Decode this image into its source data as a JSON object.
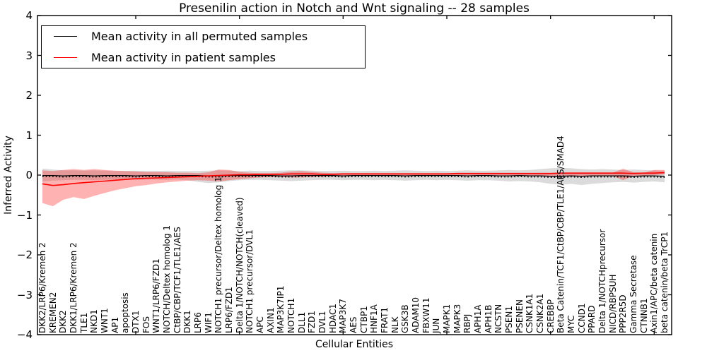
{
  "chart_data": {
    "type": "line",
    "title": "Presenilin action in Notch and Wnt signaling -- 28 samples",
    "xlabel": "Cellular Entities",
    "ylabel": "Inferred Activity",
    "ylim": [
      -4,
      4
    ],
    "y_ticks": [
      4,
      3,
      2,
      1,
      0,
      -1,
      -2,
      -3,
      -4
    ],
    "y_tick_labels": [
      "4",
      "3",
      "2",
      "1",
      "0",
      "−1",
      "−2",
      "−3",
      "−4"
    ],
    "grid": false,
    "legend_position": "upper left",
    "categories": [
      "DKK2/LRP6/Kremen 2",
      "KREMEN2",
      "DKK2",
      "DKK1/LRP6/Kremen 2",
      "TLE1",
      "NKD1",
      "WNT1",
      "AP1",
      "apoptosis",
      "DTX1",
      "FOS",
      "WNT1/LRP6/FZD1",
      "NOTCH/Deltex homolog 1",
      "CtBP/CBP/TCF1/TLE1/AES",
      "DKK1",
      "LRP6",
      "WIF1",
      "NOTCH1 precursor/Deltex homolog 1",
      "LRP6/FZD1",
      "Delta 1/NOTCH/NOTCH(cleaved)",
      "NOTCH1 precursor/DVL1",
      "APC",
      "AXIN1",
      "MAP3K7IP1",
      "NOTCH1",
      "DLL1",
      "FZD1",
      "DVL1",
      "HDAC1",
      "MAP3K7",
      "AES",
      "CTBP1",
      "HNF1A",
      "FRAT1",
      "NLK",
      "GSK3B",
      "ADAM10",
      "FBXW11",
      "JUN",
      "MAPK1",
      "MAPK3",
      "RBPJ",
      "APH1A",
      "APH1B",
      "NCSTN",
      "PSEN1",
      "PSENEN",
      "CSNK1A1",
      "CSNK2A1",
      "CREBBP",
      "Beta Catenin/TCF1/CtBP/CBP/TLE1/AES/SMAD4",
      "MYC",
      "CCND1",
      "PPARD",
      "Delta 1/NOTCHprecursor",
      "NICD/RBPSUH",
      "PPP2R5D",
      "Gamma Secretase",
      "CTNNB1",
      "Axin1/APC/beta catenin",
      "beta catenin/beta TrCP1"
    ],
    "series": [
      {
        "name": "Mean activity in all permuted samples",
        "color": "#000000",
        "band_color": "rgba(0,0,0,0.14)",
        "line_style": "solid-with-dots",
        "values": [
          -0.01,
          -0.01,
          -0.02,
          -0.01,
          -0.01,
          -0.02,
          -0.01,
          -0.01,
          -0.01,
          -0.02,
          -0.01,
          -0.01,
          -0.02,
          -0.01,
          -0.01,
          -0.01,
          -0.02,
          -0.02,
          -0.01,
          -0.01,
          -0.01,
          -0.01,
          -0.01,
          -0.02,
          -0.02,
          -0.01,
          -0.01,
          -0.01,
          -0.01,
          -0.02,
          -0.01,
          -0.01,
          -0.01,
          -0.01,
          -0.01,
          -0.02,
          -0.01,
          -0.01,
          -0.01,
          -0.01,
          -0.01,
          -0.02,
          -0.01,
          -0.01,
          -0.02,
          -0.02,
          -0.01,
          -0.02,
          -0.02,
          -0.03,
          -0.03,
          -0.02,
          -0.03,
          -0.02,
          -0.02,
          -0.02,
          -0.02,
          -0.03,
          -0.02,
          -0.02,
          -0.03
        ],
        "band_upper": [
          0.16,
          0.14,
          0.12,
          0.12,
          0.11,
          0.12,
          0.11,
          0.1,
          0.1,
          0.11,
          0.1,
          0.1,
          0.11,
          0.1,
          0.1,
          0.1,
          0.11,
          0.12,
          0.11,
          0.1,
          0.11,
          0.1,
          0.1,
          0.11,
          0.12,
          0.12,
          0.11,
          0.1,
          0.1,
          0.11,
          0.1,
          0.1,
          0.11,
          0.1,
          0.11,
          0.12,
          0.11,
          0.1,
          0.11,
          0.1,
          0.11,
          0.12,
          0.11,
          0.11,
          0.12,
          0.13,
          0.12,
          0.13,
          0.15,
          0.17,
          0.18,
          0.17,
          0.15,
          0.14,
          0.15,
          0.14,
          0.13,
          0.14,
          0.13,
          0.12,
          0.1
        ],
        "band_lower": [
          -0.16,
          -0.14,
          -0.13,
          -0.12,
          -0.12,
          -0.13,
          -0.12,
          -0.11,
          -0.11,
          -0.12,
          -0.11,
          -0.11,
          -0.12,
          -0.11,
          -0.13,
          -0.17,
          -0.2,
          -0.18,
          -0.15,
          -0.13,
          -0.12,
          -0.12,
          -0.13,
          -0.14,
          -0.15,
          -0.14,
          -0.13,
          -0.12,
          -0.12,
          -0.13,
          -0.12,
          -0.12,
          -0.13,
          -0.12,
          -0.13,
          -0.14,
          -0.13,
          -0.12,
          -0.13,
          -0.12,
          -0.13,
          -0.14,
          -0.13,
          -0.13,
          -0.14,
          -0.16,
          -0.15,
          -0.16,
          -0.18,
          -0.22,
          -0.24,
          -0.22,
          -0.25,
          -0.22,
          -0.2,
          -0.18,
          -0.17,
          -0.19,
          -0.17,
          -0.16,
          -0.18
        ]
      },
      {
        "name": "Mean activity in patient samples",
        "color": "#ff0000",
        "band_color": "rgba(255,0,0,0.30)",
        "line_style": "solid",
        "values": [
          -0.22,
          -0.26,
          -0.24,
          -0.21,
          -0.19,
          -0.17,
          -0.15,
          -0.13,
          -0.11,
          -0.09,
          -0.08,
          -0.07,
          -0.06,
          -0.05,
          -0.04,
          -0.03,
          -0.02,
          -0.01,
          0.0,
          0.01,
          0.01,
          0.02,
          0.02,
          0.02,
          0.03,
          0.03,
          0.03,
          0.02,
          0.02,
          0.03,
          0.03,
          0.03,
          0.03,
          0.03,
          0.03,
          0.03,
          0.03,
          0.03,
          0.03,
          0.03,
          0.04,
          0.04,
          0.04,
          0.04,
          0.04,
          0.04,
          0.04,
          0.04,
          0.04,
          0.04,
          0.05,
          0.05,
          0.05,
          0.05,
          0.05,
          0.05,
          0.05,
          0.04,
          0.05,
          0.05,
          0.06
        ],
        "band_upper": [
          0.12,
          0.1,
          0.13,
          0.15,
          0.13,
          0.15,
          0.13,
          0.11,
          0.1,
          0.09,
          0.08,
          0.08,
          0.07,
          0.06,
          0.06,
          0.05,
          0.07,
          0.14,
          0.13,
          0.08,
          0.06,
          0.05,
          0.05,
          0.06,
          0.09,
          0.1,
          0.08,
          0.06,
          0.05,
          0.05,
          0.05,
          0.05,
          0.05,
          0.05,
          0.05,
          0.05,
          0.05,
          0.05,
          0.05,
          0.05,
          0.05,
          0.05,
          0.05,
          0.05,
          0.05,
          0.05,
          0.05,
          0.05,
          0.05,
          0.05,
          0.06,
          0.06,
          0.06,
          0.06,
          0.06,
          0.06,
          0.16,
          0.07,
          0.06,
          0.13,
          0.13
        ],
        "band_lower": [
          -0.7,
          -0.78,
          -0.62,
          -0.55,
          -0.6,
          -0.52,
          -0.45,
          -0.38,
          -0.33,
          -0.28,
          -0.25,
          -0.21,
          -0.18,
          -0.16,
          -0.14,
          -0.13,
          -0.14,
          -0.16,
          -0.13,
          -0.1,
          -0.08,
          -0.06,
          -0.05,
          -0.05,
          -0.06,
          -0.06,
          -0.05,
          -0.04,
          -0.03,
          -0.03,
          -0.02,
          -0.02,
          -0.02,
          -0.02,
          -0.02,
          -0.02,
          -0.02,
          -0.02,
          -0.02,
          -0.02,
          -0.02,
          -0.02,
          -0.02,
          -0.02,
          -0.02,
          -0.02,
          -0.02,
          -0.02,
          -0.02,
          -0.02,
          -0.02,
          -0.02,
          -0.02,
          -0.02,
          -0.02,
          -0.02,
          -0.13,
          -0.02,
          -0.01,
          0.0,
          0.02
        ]
      }
    ]
  }
}
